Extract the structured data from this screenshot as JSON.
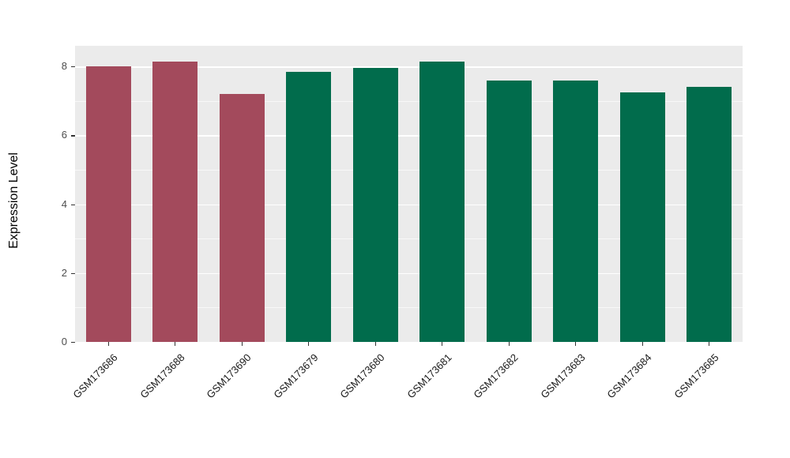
{
  "chart_data": {
    "type": "bar",
    "categories": [
      "GSM173686",
      "GSM173688",
      "GSM173690",
      "GSM173679",
      "GSM173680",
      "GSM173681",
      "GSM173682",
      "GSM173683",
      "GSM173684",
      "GSM173685"
    ],
    "values": [
      8.0,
      8.15,
      7.2,
      7.85,
      7.95,
      8.15,
      7.6,
      7.6,
      7.25,
      7.4
    ],
    "bar_colors": [
      "#A34A5C",
      "#A34A5C",
      "#A34A5C",
      "#016C4C",
      "#016C4C",
      "#016C4C",
      "#016C4C",
      "#016C4C",
      "#016C4C",
      "#016C4C"
    ],
    "title": "",
    "xlabel": "",
    "ylabel": "Expression Level",
    "yticks": [
      0,
      2,
      4,
      6,
      8
    ],
    "yticks_minor": [
      1,
      3,
      5,
      7
    ],
    "ylim": [
      0,
      8.6
    ],
    "legend": "none",
    "grid": "on",
    "panel_background": "#EBEBEB",
    "grid_color": "#FFFFFF"
  }
}
